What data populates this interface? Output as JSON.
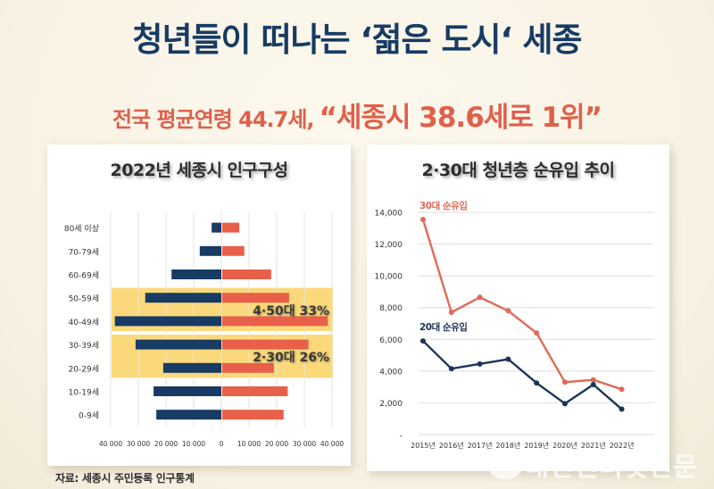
{
  "headline": "청년들이 떠나는 ‘젊은 도시‘ 세종",
  "subheadline": {
    "prefix": "전국 평균연령 44.7세,",
    "quote": "“세종시 38.6세로 1위”"
  },
  "source": "자료: 세종시 주민등록 인구통계",
  "watermark": "대전인터넷신문",
  "colors": {
    "navy": "#173b63",
    "coral": "#e8604a",
    "highlight": "#fbd97a",
    "line30": "#e06a55",
    "line20": "#1b3556"
  },
  "chart_data": [
    {
      "type": "bar",
      "subtype": "population-pyramid",
      "title": "2022년 세종시 인구구성",
      "categories": [
        "80세 이상",
        "70-79세",
        "60-69세",
        "50-59세",
        "40-49세",
        "30-39세",
        "20-29세",
        "10-19세",
        "0-9세"
      ],
      "series": [
        {
          "name": "left",
          "color": "#173b63",
          "values": [
            3500,
            7800,
            18000,
            27500,
            38500,
            31000,
            21000,
            24500,
            23500
          ]
        },
        {
          "name": "right",
          "color": "#e8604a",
          "values": [
            6500,
            8300,
            18000,
            24500,
            38500,
            31500,
            19000,
            24000,
            22500
          ]
        }
      ],
      "xlim": [
        -40000,
        40000
      ],
      "xticks": [
        "40 000",
        "30 000",
        "20 000",
        "10 000",
        "0",
        "10 000",
        "20 000",
        "30 000",
        "40 000"
      ],
      "grid": true,
      "highlights": [
        {
          "rows": [
            "50-59세",
            "40-49세"
          ],
          "label": "4·50대 33%"
        },
        {
          "rows": [
            "30-39세",
            "20-29세"
          ],
          "label": "2·30대 26%"
        }
      ]
    },
    {
      "type": "line",
      "title": "2·30대 청년층 순유입 추이",
      "x": [
        "2015년",
        "2016년",
        "2017년",
        "2018년",
        "2019년",
        "2020년",
        "2021년",
        "2022년"
      ],
      "series": [
        {
          "name": "30대 순유입",
          "color": "#e06a55",
          "values": [
            13550,
            7700,
            8650,
            7800,
            6400,
            3300,
            3450,
            2850
          ]
        },
        {
          "name": "20대 순유입",
          "color": "#1b3556",
          "values": [
            5900,
            4150,
            4450,
            4750,
            3250,
            1950,
            3150,
            1600
          ]
        }
      ],
      "ylim": [
        0,
        14000
      ],
      "yticks": [
        "-",
        "2,000",
        "4,000",
        "6,000",
        "8,000",
        "10,000",
        "12,000",
        "14,000"
      ],
      "grid": true,
      "legend": "inline-labels"
    }
  ]
}
